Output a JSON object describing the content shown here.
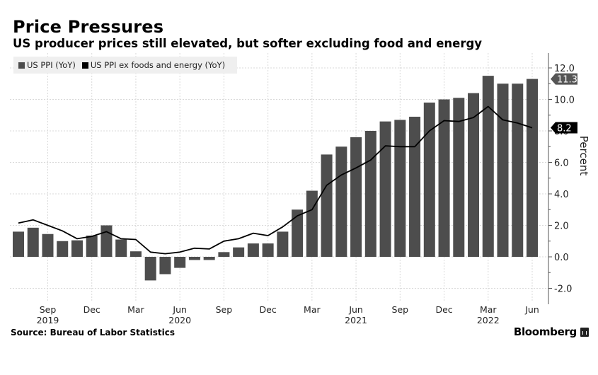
{
  "header": {
    "title": "Price Pressures",
    "subtitle": "US producer prices still elevated, but softer excluding food and energy"
  },
  "footer": {
    "source": "Source: Bureau of Labor Statistics",
    "brand": "Bloomberg",
    "brand_icon": "bloomberg-logo-icon"
  },
  "colors": {
    "bar": "#4d4d4d",
    "line": "#000000",
    "grid": "#d9d9d9",
    "legend_bg": "#efefef"
  },
  "chart_data": {
    "type": "bar",
    "title": "Price Pressures",
    "subtitle": "US producer prices still elevated, but softer excluding food and energy",
    "xlabel": "",
    "ylabel": "Percent",
    "ylim": [
      -2.5,
      12.5
    ],
    "yticks": [
      -2.0,
      0.0,
      2.0,
      4.0,
      6.0,
      8.0,
      10.0,
      12.0
    ],
    "ytick_labels": [
      "-2.0",
      "0.0",
      "2.0",
      "4.0",
      "6.0",
      "8.0",
      "10.0",
      "12.0"
    ],
    "grid": true,
    "y_axis_side": "right",
    "legend_position": "top-left",
    "categories": [
      "2019-07",
      "2019-08",
      "2019-09",
      "2019-10",
      "2019-11",
      "2019-12",
      "2020-01",
      "2020-02",
      "2020-03",
      "2020-04",
      "2020-05",
      "2020-06",
      "2020-07",
      "2020-08",
      "2020-09",
      "2020-10",
      "2020-11",
      "2020-12",
      "2021-01",
      "2021-02",
      "2021-03",
      "2021-04",
      "2021-05",
      "2021-06",
      "2021-07",
      "2021-08",
      "2021-09",
      "2021-10",
      "2021-11",
      "2021-12",
      "2022-01",
      "2022-02",
      "2022-03",
      "2022-04",
      "2022-05",
      "2022-06"
    ],
    "x_ticks": [
      {
        "index": 2,
        "label": "Sep",
        "year": "2019"
      },
      {
        "index": 5,
        "label": "Dec",
        "year": ""
      },
      {
        "index": 8,
        "label": "Mar",
        "year": ""
      },
      {
        "index": 11,
        "label": "Jun",
        "year": "2020"
      },
      {
        "index": 14,
        "label": "Sep",
        "year": ""
      },
      {
        "index": 17,
        "label": "Dec",
        "year": ""
      },
      {
        "index": 20,
        "label": "Mar",
        "year": ""
      },
      {
        "index": 23,
        "label": "Jun",
        "year": "2021"
      },
      {
        "index": 26,
        "label": "Sep",
        "year": ""
      },
      {
        "index": 29,
        "label": "Dec",
        "year": ""
      },
      {
        "index": 32,
        "label": "Mar",
        "year": "2022"
      },
      {
        "index": 35,
        "label": "Jun",
        "year": ""
      }
    ],
    "series": [
      {
        "name": "US PPI (YoY)",
        "type": "bar",
        "color": "#4d4d4d",
        "values": [
          1.6,
          1.85,
          1.45,
          1.0,
          1.05,
          1.35,
          2.0,
          1.1,
          0.35,
          -1.5,
          -1.1,
          -0.7,
          -0.2,
          -0.2,
          0.3,
          0.6,
          0.85,
          0.85,
          1.6,
          3.0,
          4.2,
          6.5,
          7.0,
          7.6,
          8.0,
          8.6,
          8.7,
          8.9,
          9.8,
          10.0,
          10.1,
          10.4,
          11.5,
          11.0,
          11.0,
          11.3
        ],
        "last_value_label": "11.3"
      },
      {
        "name": "US PPI ex foods and energy (YoY)",
        "type": "line",
        "color": "#000000",
        "values": [
          2.15,
          2.35,
          2.0,
          1.65,
          1.15,
          1.3,
          1.6,
          1.15,
          1.1,
          0.3,
          0.2,
          0.3,
          0.55,
          0.5,
          1.0,
          1.15,
          1.5,
          1.35,
          1.9,
          2.6,
          3.0,
          4.55,
          5.2,
          5.65,
          6.15,
          7.05,
          7.0,
          7.0,
          8.0,
          8.65,
          8.6,
          8.85,
          9.55,
          8.7,
          8.5,
          8.2
        ],
        "last_value_label": "8.2"
      }
    ]
  }
}
